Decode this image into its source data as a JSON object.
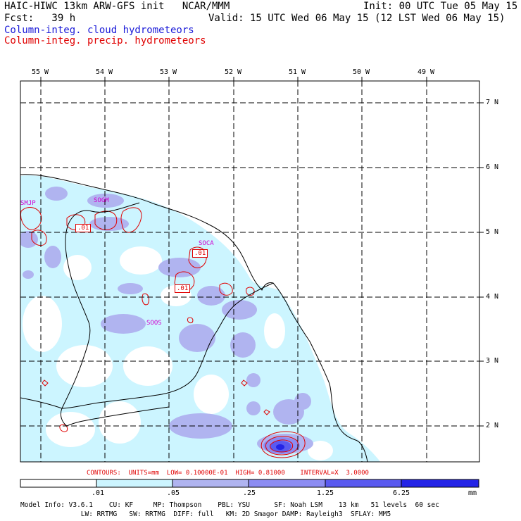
{
  "header": {
    "line1_left": "HAIC-HIWC 13km ARW-GFS init   NCAR/MMM",
    "line1_right": "Init: 00 UTC Tue 05 May 15",
    "line2_left": "Fcst:   39 h",
    "line2_right": "Valid: 15 UTC Wed 06 May 15 (12 LST Wed 06 May 15)",
    "line3": "Column-integ. cloud hydrometeors",
    "line4": "Column-integ. precip. hydrometeors"
  },
  "axes": {
    "lon_labels": [
      "55 W",
      "54 W",
      "53 W",
      "52 W",
      "51 W",
      "50 W",
      "49 W"
    ],
    "lat_labels": [
      "7 N",
      "6 N",
      "5 N",
      "4 N",
      "3 N",
      "2 N"
    ]
  },
  "stations": [
    "SMJP",
    "SOGM",
    "SOCA",
    "SOOS"
  ],
  "contour_labels": [
    ".01",
    ".01",
    ".01"
  ],
  "contours_line": "CONTOURS:  UNITS=mm  LOW= 0.10000E-01  HIGH= 0.81000    INTERVAL=X  3.0000",
  "colorbar": {
    "ticks": [
      ".01",
      ".05",
      ".25",
      "1.25",
      "6.25"
    ],
    "unit": "mm",
    "colors": [
      "#ffffff",
      "#ccf5ff",
      "#b0b4f0",
      "#8c8cf2",
      "#5a5af0",
      "#2424e6"
    ]
  },
  "footer": {
    "line1": "Model Info: V3.6.1    CU: KF     MP: Thompson    PBL: YSU      SF: Noah LSM    13 km   51 levels  60 sec",
    "line2": "               LW: RRTMG   SW: RRTMG  DIFF: full   KM: 2D Smagor DAMP: Rayleigh3  SFLAY: MM5"
  }
}
